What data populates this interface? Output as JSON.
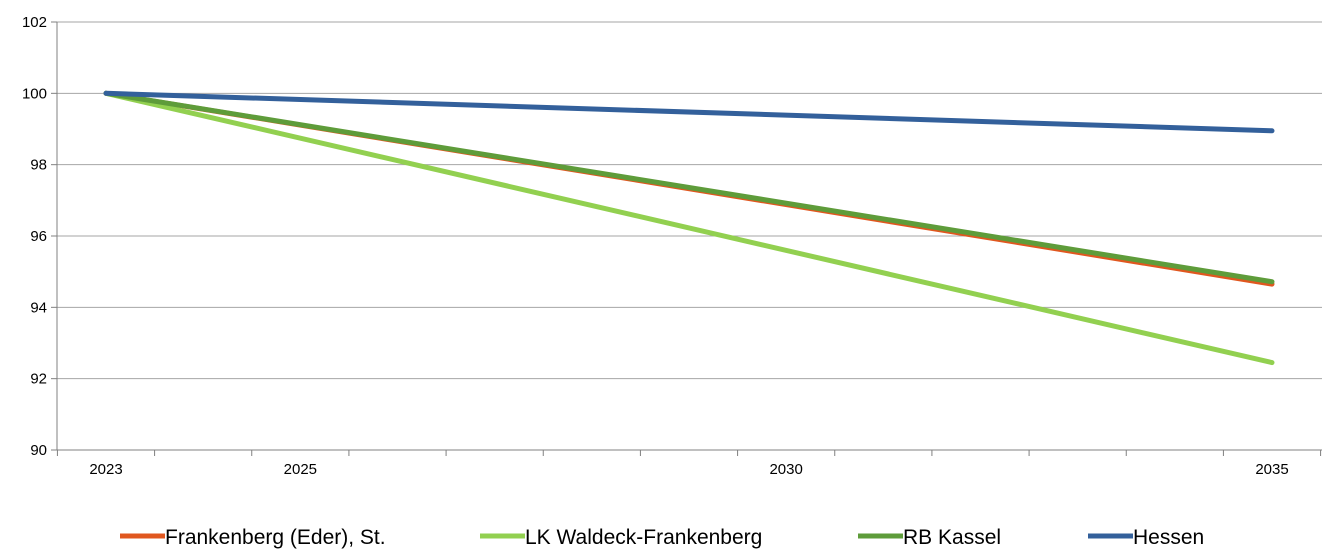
{
  "chart_data": {
    "type": "line",
    "title": "",
    "xlabel": "",
    "ylabel": "",
    "xlim": [
      2023,
      2035
    ],
    "ylim": [
      90,
      102
    ],
    "x_ticks": [
      2023,
      2025,
      2030,
      2035
    ],
    "y_ticks": [
      90,
      92,
      94,
      96,
      98,
      100,
      102
    ],
    "grid": "horizontal",
    "legend": "bottom",
    "series": [
      {
        "name": "Frankenberg (Eder), St.",
        "color": "#e0571f",
        "x": [
          2023,
          2035
        ],
        "y": [
          100,
          94.65
        ]
      },
      {
        "name": "LK Waldeck-Frankenberg",
        "color": "#92d050",
        "x": [
          2023,
          2035
        ],
        "y": [
          100,
          92.45
        ]
      },
      {
        "name": "RB Kassel",
        "color": "#5e9c3a",
        "x": [
          2023,
          2035
        ],
        "y": [
          100,
          94.72
        ]
      },
      {
        "name": "Hessen",
        "color": "#33609b",
        "x": [
          2023,
          2035
        ],
        "y": [
          100,
          98.95
        ]
      }
    ]
  }
}
